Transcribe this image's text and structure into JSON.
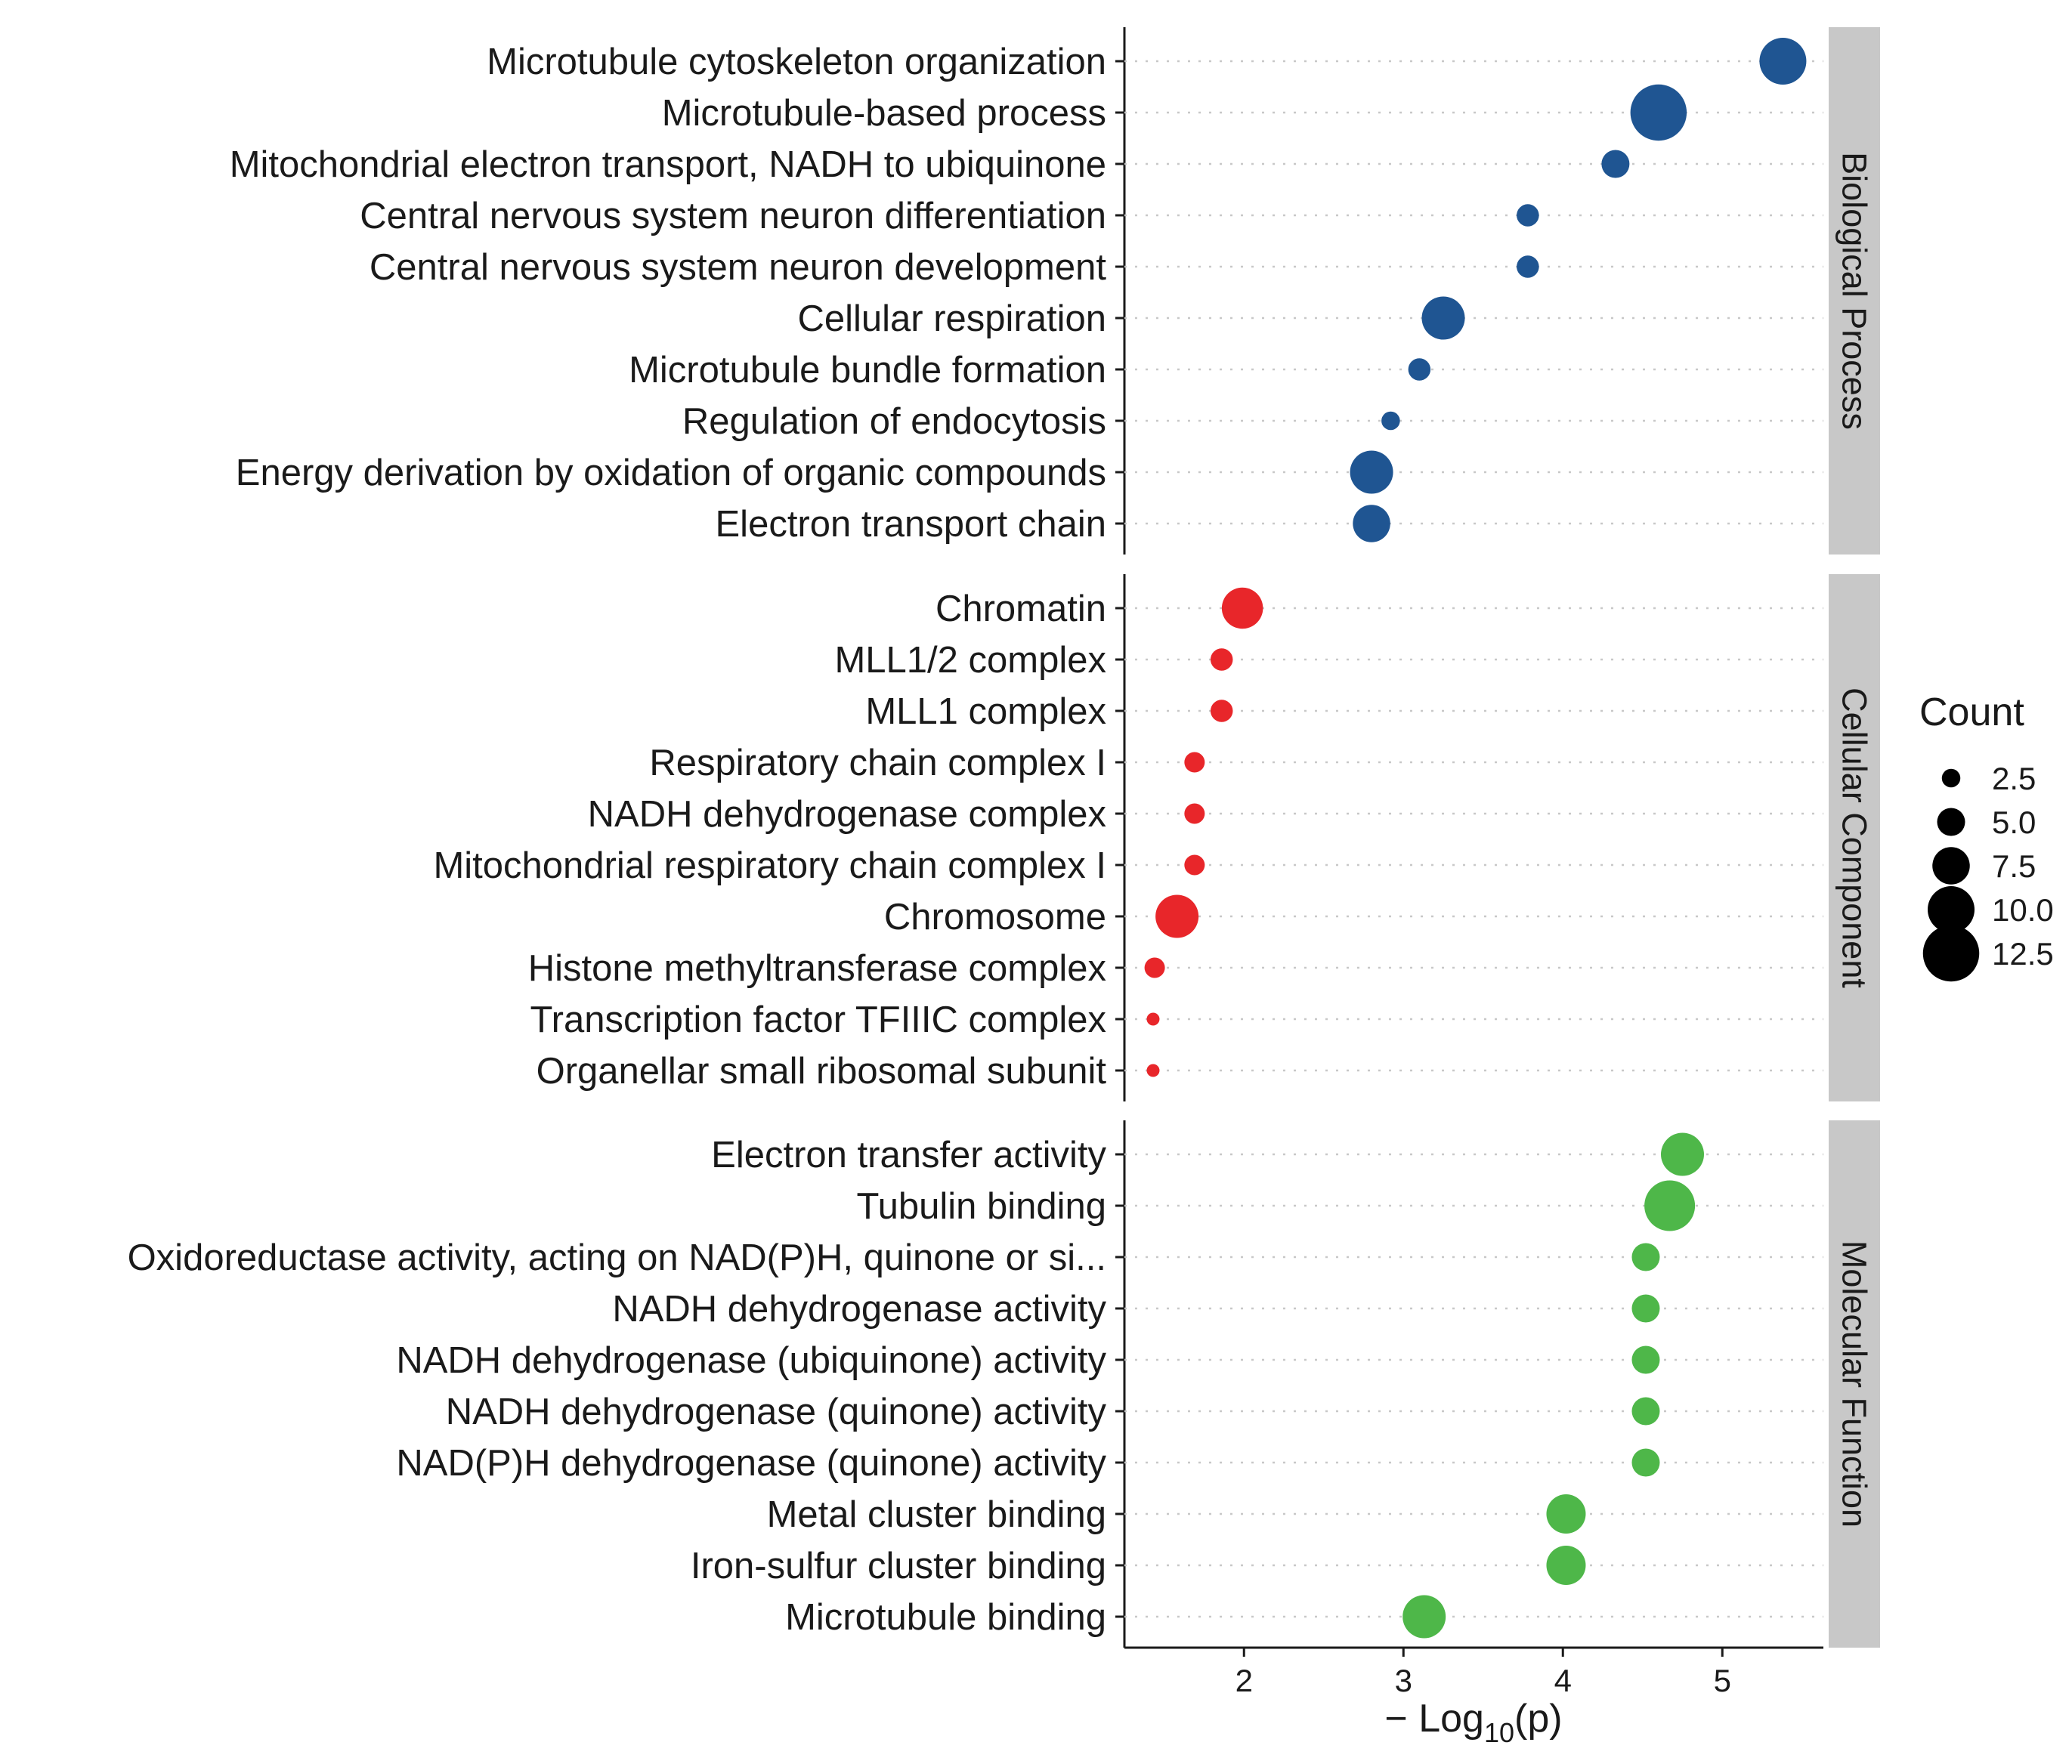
{
  "chart_data": {
    "type": "scatter",
    "xlabel_prefix": "− Log",
    "xlabel_sub": "10",
    "xlabel_suffix": "(p)",
    "xlim": [
      1.25,
      5.6
    ],
    "xticks": [
      2,
      3,
      4,
      5
    ],
    "panels": [
      {
        "name": "Biological Process",
        "color": "#1f5592",
        "terms": [
          {
            "label": "Microtubule cytoskeleton organization",
            "x": 5.38,
            "count": 10.0
          },
          {
            "label": "Microtubule-based process",
            "x": 4.6,
            "count": 12.5
          },
          {
            "label": "Mitochondrial electron transport, NADH to ubiquinone",
            "x": 4.33,
            "count": 5.0
          },
          {
            "label": "Central nervous system neuron differentiation",
            "x": 3.78,
            "count": 3.5
          },
          {
            "label": "Central nervous system neuron development",
            "x": 3.78,
            "count": 3.5
          },
          {
            "label": "Cellular respiration",
            "x": 3.25,
            "count": 9.0
          },
          {
            "label": "Microtubule bundle formation",
            "x": 3.1,
            "count": 3.5
          },
          {
            "label": "Regulation of endocytosis",
            "x": 2.92,
            "count": 2.5
          },
          {
            "label": "Energy derivation by oxidation of organic compounds",
            "x": 2.8,
            "count": 9.0
          },
          {
            "label": "Electron transport chain",
            "x": 2.8,
            "count": 7.5
          }
        ]
      },
      {
        "name": "Cellular Component",
        "color": "#e8262a",
        "terms": [
          {
            "label": "Chromatin",
            "x": 1.99,
            "count": 8.5
          },
          {
            "label": "MLL1/2 complex",
            "x": 1.86,
            "count": 3.5
          },
          {
            "label": "MLL1 complex",
            "x": 1.86,
            "count": 3.5
          },
          {
            "label": "Respiratory chain complex I",
            "x": 1.69,
            "count": 3.0
          },
          {
            "label": "NADH dehydrogenase complex",
            "x": 1.69,
            "count": 3.0
          },
          {
            "label": "Mitochondrial respiratory chain complex I",
            "x": 1.69,
            "count": 3.0
          },
          {
            "label": "Chromosome",
            "x": 1.58,
            "count": 9.0
          },
          {
            "label": "Histone methyltransferase complex",
            "x": 1.44,
            "count": 3.0
          },
          {
            "label": "Transcription factor TFIIIC complex",
            "x": 1.43,
            "count": 1.0
          },
          {
            "label": "Organellar small ribosomal subunit",
            "x": 1.43,
            "count": 1.0
          }
        ]
      },
      {
        "name": "Molecular Function",
        "color": "#4eb749",
        "terms": [
          {
            "label": "Electron transfer activity",
            "x": 4.75,
            "count": 9.0
          },
          {
            "label": "Tubulin binding",
            "x": 4.67,
            "count": 11.0
          },
          {
            "label": "Oxidoreductase activity, acting on NAD(P)H, quinone or si...",
            "x": 4.52,
            "count": 5.0
          },
          {
            "label": "NADH dehydrogenase activity",
            "x": 4.52,
            "count": 5.0
          },
          {
            "label": "NADH dehydrogenase (ubiquinone) activity",
            "x": 4.52,
            "count": 5.0
          },
          {
            "label": "NADH dehydrogenase (quinone) activity",
            "x": 4.52,
            "count": 5.0
          },
          {
            "label": "NAD(P)H dehydrogenase (quinone) activity",
            "x": 4.52,
            "count": 5.0
          },
          {
            "label": "Metal cluster binding",
            "x": 4.02,
            "count": 8.0
          },
          {
            "label": "Iron-sulfur cluster binding",
            "x": 4.02,
            "count": 8.0
          },
          {
            "label": "Microtubule binding",
            "x": 3.13,
            "count": 9.0
          }
        ]
      }
    ],
    "legend": {
      "title": "Count",
      "placement": "right",
      "color": "#000000",
      "values": [
        2.5,
        5.0,
        7.5,
        10.0,
        12.5
      ],
      "labels": [
        "2.5",
        "5.0",
        "7.5",
        "10.0",
        "12.5"
      ]
    }
  }
}
